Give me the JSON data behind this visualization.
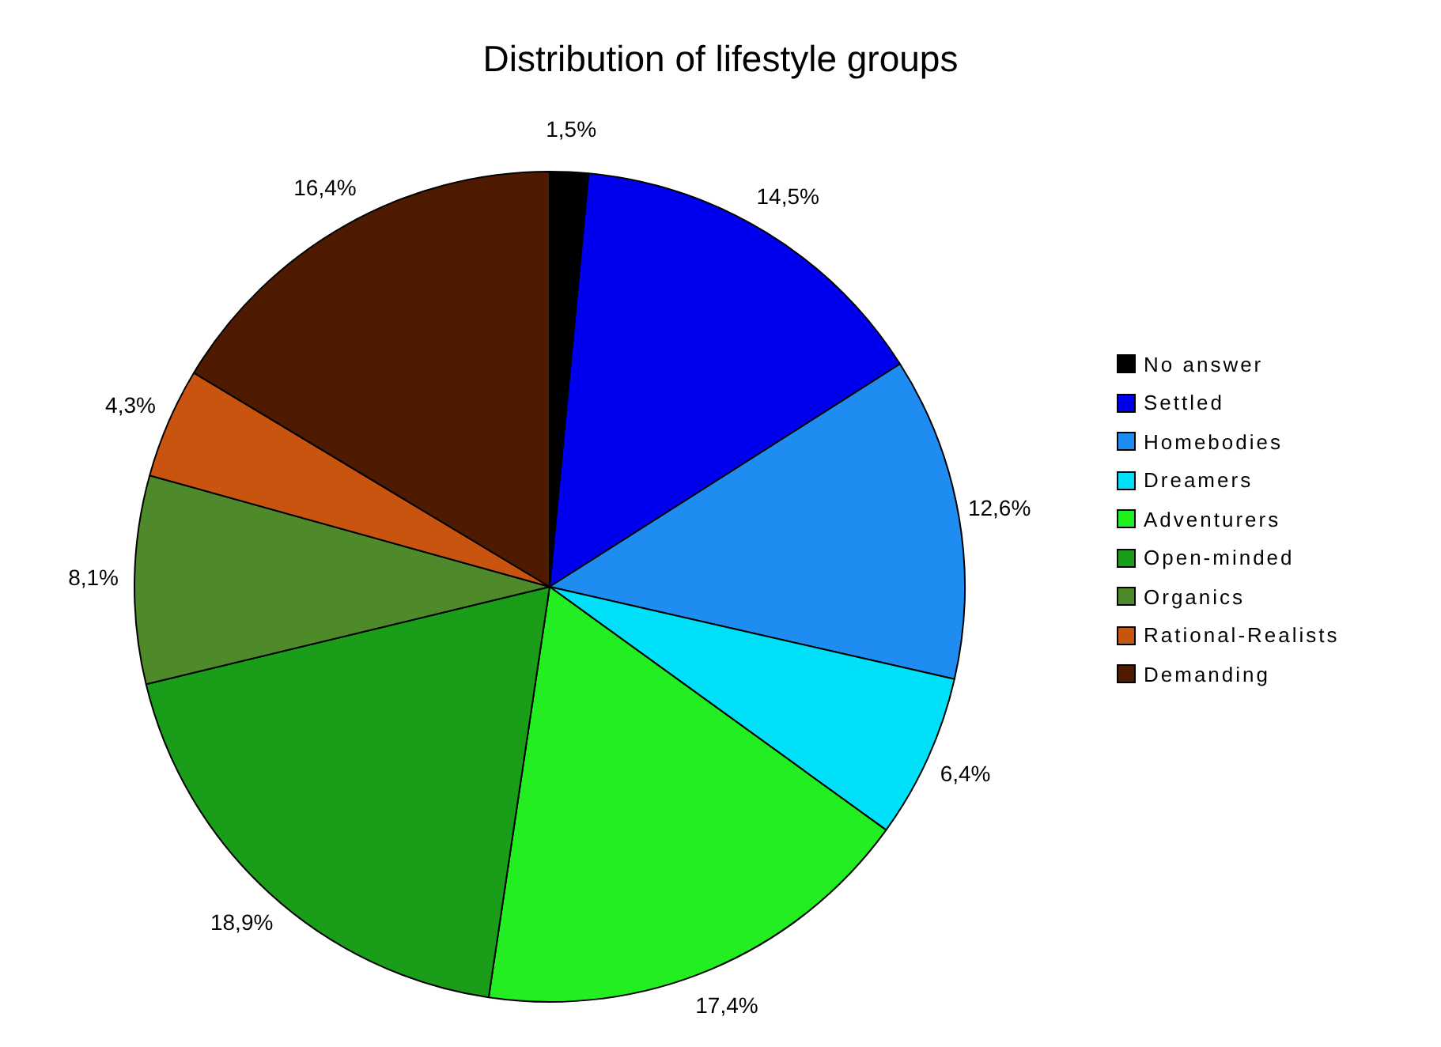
{
  "chart_data": {
    "type": "pie",
    "title": "Distribution of lifestyle groups",
    "categories": [
      "No answer",
      "Settled",
      "Homebodies",
      "Dreamers",
      "Adventurers",
      "Open-minded",
      "Organics",
      "Rational-Realists",
      "Demanding"
    ],
    "values": [
      1.5,
      14.5,
      12.6,
      6.4,
      17.4,
      18.9,
      8.1,
      4.3,
      16.4
    ],
    "colors": [
      "#000000",
      "#0000ee",
      "#1e8cf0",
      "#00e0f8",
      "#22ee22",
      "#1a9e1a",
      "#4e8a2a",
      "#c85410",
      "#4e1a00"
    ],
    "value_labels": [
      "1,5%",
      "14,5%",
      "12,6%",
      "6,4%",
      "17,4%",
      "18,9%",
      "8,1%",
      "4,3%",
      "16,4%"
    ],
    "legend": "right"
  }
}
